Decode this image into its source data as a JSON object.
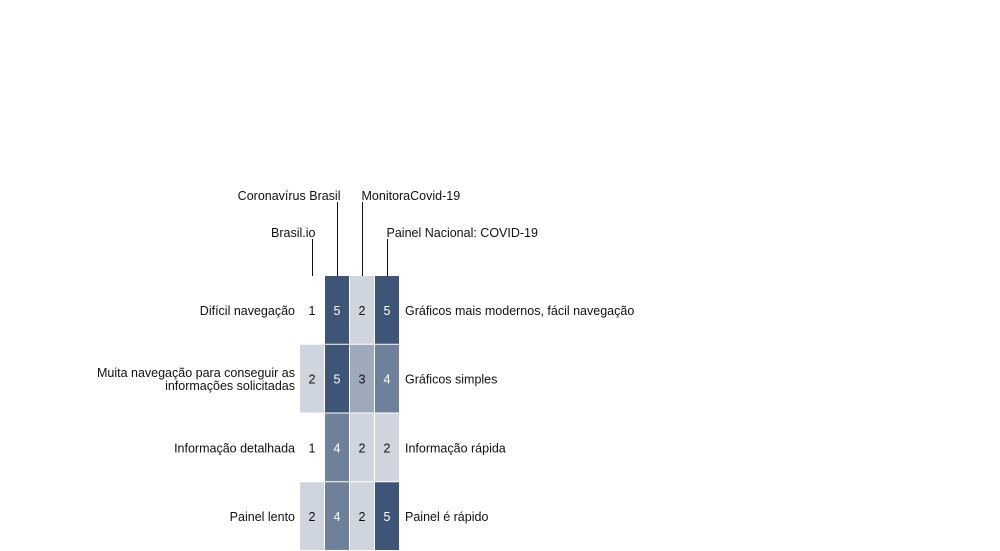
{
  "chart_data": {
    "type": "heatmap",
    "columns": [
      "Brasil.io",
      "Coronavírus Brasil",
      "MonitoraCovid-19",
      "Painel Nacional: COVID-19"
    ],
    "rows": [
      {
        "left": [
          "Difícil navegação"
        ],
        "right": "Gráficos mais modernos, fácil navegação",
        "values": [
          1,
          5,
          2,
          5
        ]
      },
      {
        "left": [
          "Muita navegação para conseguir as",
          "informações solicitadas"
        ],
        "right": "Gráficos simples",
        "values": [
          2,
          5,
          3,
          4
        ]
      },
      {
        "left": [
          "Informação detalhada"
        ],
        "right": "Informação rápida",
        "values": [
          1,
          4,
          2,
          2
        ]
      },
      {
        "left": [
          "Painel lento"
        ],
        "right": "Painel é rápido",
        "values": [
          2,
          4,
          2,
          5
        ]
      }
    ],
    "colors": {
      "1": "#ffffff",
      "2": "#cfd5de",
      "3": "#9eaabb",
      "4": "#6f809a",
      "5": "#3f5578"
    },
    "text_colors": {
      "light": "#ffffff",
      "dark": "#111111"
    }
  }
}
